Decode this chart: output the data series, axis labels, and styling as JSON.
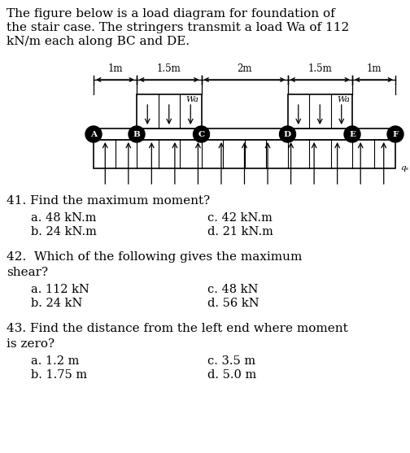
{
  "title_line1": "The figure below is a load diagram for foundation of",
  "title_line2": "the stair case. The stringers transmit a load Wa of 112",
  "title_line3": "kN/m each along BC and DE.",
  "q41_text": "41. Find the maximum moment?",
  "q41_a": "a. 48 kN.m",
  "q41_c": "c. 42 kN.m",
  "q41_b": "b. 24 kN.m",
  "q41_d": "d. 21 kN.m",
  "q42_line1": "42.  Which of the following gives the maximum",
  "q42_line2": "shear?",
  "q42_a": "a. 112 kN",
  "q42_c": "c. 48 kN",
  "q42_b": "b. 24 kN",
  "q42_d": "d. 56 kN",
  "q43_line1": "43. Find the distance from the left end where moment",
  "q43_line2": "is zero?",
  "q43_a": "a. 1.2 m",
  "q43_c": "c. 3.5 m",
  "q43_b": "b. 1.75 m",
  "q43_d": "d. 5.0 m",
  "bg_color": "#ffffff",
  "text_color": "#000000",
  "font_size_body": 11.0,
  "font_size_ans": 10.5,
  "font_size_diag": 8.5,
  "point_labels": [
    "A",
    "B",
    "C",
    "D",
    "E",
    "F"
  ],
  "dim_labels": [
    "1m",
    "1.5m",
    "2m",
    "1.5m",
    "1m"
  ],
  "wa_label": "Wa",
  "qs_label": "qₛ"
}
